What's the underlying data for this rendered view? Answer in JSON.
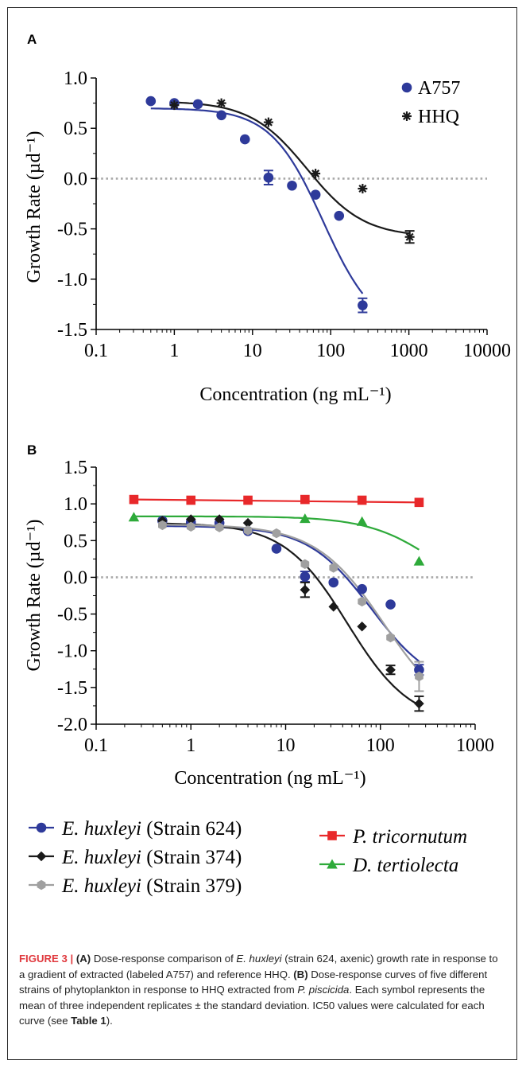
{
  "panels": [
    {
      "letter": "A",
      "ylabel": "Growth Rate (µd⁻¹)",
      "xlabel": "Concentration (ng mL⁻¹)",
      "xticks": [
        "0.1",
        "1",
        "10",
        "100",
        "1000",
        "10000"
      ],
      "yticks": [
        "1.0",
        "0.5",
        "0.0",
        "-0.5",
        "-1.0",
        "-1.5"
      ]
    },
    {
      "letter": "B",
      "ylabel": "Growth Rate (µd⁻¹)",
      "xlabel": "Concentration (ng mL⁻¹)",
      "xticks": [
        "0.1",
        "1",
        "10",
        "100",
        "1000"
      ],
      "yticks": [
        "1.5",
        "1.0",
        "0.5",
        "0.0",
        "-0.5",
        "-1.0",
        "-1.5",
        "-2.0"
      ]
    }
  ],
  "chart_data": [
    {
      "type": "scatter",
      "panel": "A",
      "xscale": "log",
      "xlim": [
        0.1,
        10000
      ],
      "ylim": [
        -1.5,
        1.0
      ],
      "zero_reference_line": true,
      "legend_position": "top-right",
      "series": [
        {
          "name": "A757",
          "color": "#2e3a9a",
          "marker": "circle",
          "x": [
            0.5,
            1,
            2,
            4,
            8,
            16,
            32,
            64,
            128,
            256
          ],
          "y": [
            0.77,
            0.75,
            0.74,
            0.63,
            0.39,
            0.01,
            -0.07,
            -0.16,
            -0.37,
            -1.26
          ],
          "err": [
            0,
            0,
            0,
            0,
            0,
            0.07,
            0,
            0,
            0,
            0.07
          ],
          "fit": {
            "top": 0.7,
            "bottom": -1.55,
            "ic50": 80,
            "hill": 1.3,
            "xmin": 0.5,
            "xmax": 256
          }
        },
        {
          "name": "HHQ",
          "color": "#1a1a1a",
          "marker": "asterisk",
          "x": [
            1,
            4,
            16,
            64,
            256,
            1024
          ],
          "y": [
            0.73,
            0.75,
            0.56,
            0.05,
            -0.1,
            -0.58
          ],
          "err": [
            0,
            0,
            0,
            0,
            0,
            0.06
          ],
          "fit": {
            "top": 0.77,
            "bottom": -0.58,
            "ic50": 50,
            "hill": 1.2,
            "xmin": 1,
            "xmax": 1024
          }
        }
      ]
    },
    {
      "type": "scatter",
      "panel": "B",
      "xscale": "log",
      "xlim": [
        0.1,
        1000
      ],
      "ylim": [
        -2.0,
        1.5
      ],
      "zero_reference_line": true,
      "legend_position": "bottom",
      "series": [
        {
          "name": "E. huxleyi (Strain 624)",
          "species": "E. huxleyi",
          "strain": "(Strain 624)",
          "color": "#2e3a9a",
          "marker": "circle",
          "x": [
            0.5,
            1,
            2,
            4,
            8,
            16,
            32,
            64,
            128,
            256
          ],
          "y": [
            0.77,
            0.75,
            0.74,
            0.63,
            0.39,
            0.01,
            -0.07,
            -0.16,
            -0.37,
            -1.26
          ],
          "err": [
            0,
            0,
            0,
            0,
            0,
            0.07,
            0,
            0,
            0,
            0.07
          ],
          "fit": {
            "top": 0.7,
            "bottom": -1.55,
            "ic50": 80,
            "hill": 1.3,
            "xmin": 0.5,
            "xmax": 256
          }
        },
        {
          "name": "E. huxleyi (Strain 374)",
          "species": "E. huxleyi",
          "strain": "(Strain 374)",
          "color": "#1a1a1a",
          "marker": "diamond",
          "x": [
            0.5,
            1,
            2,
            4,
            16,
            32,
            64,
            128,
            256
          ],
          "y": [
            0.77,
            0.79,
            0.79,
            0.74,
            -0.17,
            -0.4,
            -0.67,
            -1.26,
            -1.72
          ],
          "err": [
            0,
            0,
            0,
            0,
            0.1,
            0,
            0,
            0.06,
            0.1
          ],
          "fit": {
            "top": 0.74,
            "bottom": -2.0,
            "ic50": 45,
            "hill": 1.3,
            "xmin": 0.5,
            "xmax": 256
          }
        },
        {
          "name": "E. huxleyi (Strain 379)",
          "species": "E. huxleyi",
          "strain": "(Strain 379)",
          "color": "#a0a0a0",
          "marker": "hexagon",
          "x": [
            0.5,
            1,
            2,
            4,
            8,
            16,
            32,
            64,
            128,
            256
          ],
          "y": [
            0.71,
            0.69,
            0.68,
            0.64,
            0.6,
            0.18,
            0.13,
            -0.33,
            -0.82,
            -1.35
          ],
          "err": [
            0,
            0,
            0,
            0,
            0,
            0,
            0,
            0,
            0,
            0.2
          ],
          "fit": {
            "top": 0.72,
            "bottom": -2.0,
            "ic50": 110,
            "hill": 1.2,
            "xmin": 0.5,
            "xmax": 256
          }
        },
        {
          "name": "P. tricornutum",
          "species": "P. tricornutum",
          "strain": "",
          "color": "#e8282a",
          "marker": "square",
          "x": [
            0.25,
            1,
            4,
            16,
            64,
            256
          ],
          "y": [
            1.06,
            1.05,
            1.05,
            1.06,
            1.05,
            1.02
          ],
          "err": [
            0,
            0,
            0,
            0,
            0,
            0
          ],
          "fit": {
            "type": "linear",
            "y0": 1.06,
            "y1": 1.02,
            "xmin": 0.25,
            "xmax": 256
          }
        },
        {
          "name": "D. tertiolecta",
          "species": "D. tertiolecta",
          "strain": "",
          "color": "#2eaa3a",
          "marker": "triangle",
          "x": [
            0.25,
            16,
            64,
            256
          ],
          "y": [
            0.82,
            0.8,
            0.76,
            0.22
          ],
          "err": [
            0,
            0,
            0,
            0
          ],
          "fit": {
            "top": 0.83,
            "bottom": -0.4,
            "ic50": 400,
            "hill": 1.2,
            "xmin": 0.25,
            "xmax": 256
          }
        }
      ]
    }
  ],
  "caption": {
    "label": "FIGURE 3 | ",
    "a_tag": "(A)",
    "a_text_1": " Dose-response comparison of ",
    "a_species": "E. huxleyi",
    "a_text_2": " (strain 624, axenic) growth rate in response to a gradient of extracted (labeled A757) and reference HHQ. ",
    "b_tag": "(B)",
    "b_text_1": " Dose-response curves of five different strains of phytoplankton in response to HHQ extracted from ",
    "b_species": "P. piscicida",
    "b_text_2": ". Each symbol represents the mean of three independent replicates ± the standard deviation. IC50 values were calculated for each curve (see ",
    "table_ref": "Table 1",
    "b_text_3": ")."
  }
}
